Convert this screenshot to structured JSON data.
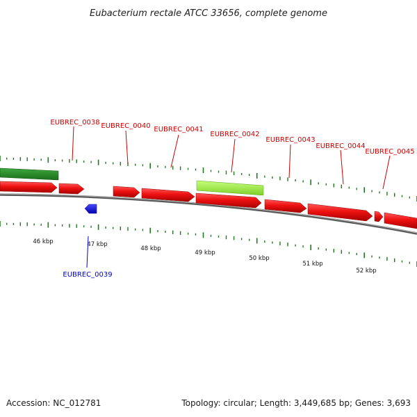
{
  "title": "Eubacterium rectale ATCC 33656, complete genome",
  "footer": {
    "accession": "Accession: NC_012781",
    "summary": "Topology: circular; Length: 3,449,685 bp; Genes: 3,693"
  },
  "colors": {
    "forward_cds": "#ee1111",
    "forward_cds_dark": "#b00000",
    "reverse_gene": "#0000ee",
    "rna_feature": "#2a8a2a",
    "highlight_feature": "#99ee44",
    "tick": "#1f7a1f",
    "backbone": "#777777",
    "label_forward": "#cc0000",
    "label_reverse": "#0000cc"
  },
  "kbp_ticks": [
    "46 kbp",
    "47 kbp",
    "48 kbp",
    "49 kbp",
    "50 kbp",
    "51 kbp",
    "52 kbp"
  ],
  "gene_labels": [
    {
      "name": "EUBREC_0038",
      "strand": "forward"
    },
    {
      "name": "EUBREC_0040",
      "strand": "forward"
    },
    {
      "name": "EUBREC_0041",
      "strand": "forward"
    },
    {
      "name": "EUBREC_0042",
      "strand": "forward"
    },
    {
      "name": "EUBREC_0043",
      "strand": "forward"
    },
    {
      "name": "EUBREC_0044",
      "strand": "forward"
    },
    {
      "name": "EUBREC_0045",
      "strand": "forward"
    },
    {
      "name": "EUBREC_0039",
      "strand": "reverse"
    }
  ]
}
